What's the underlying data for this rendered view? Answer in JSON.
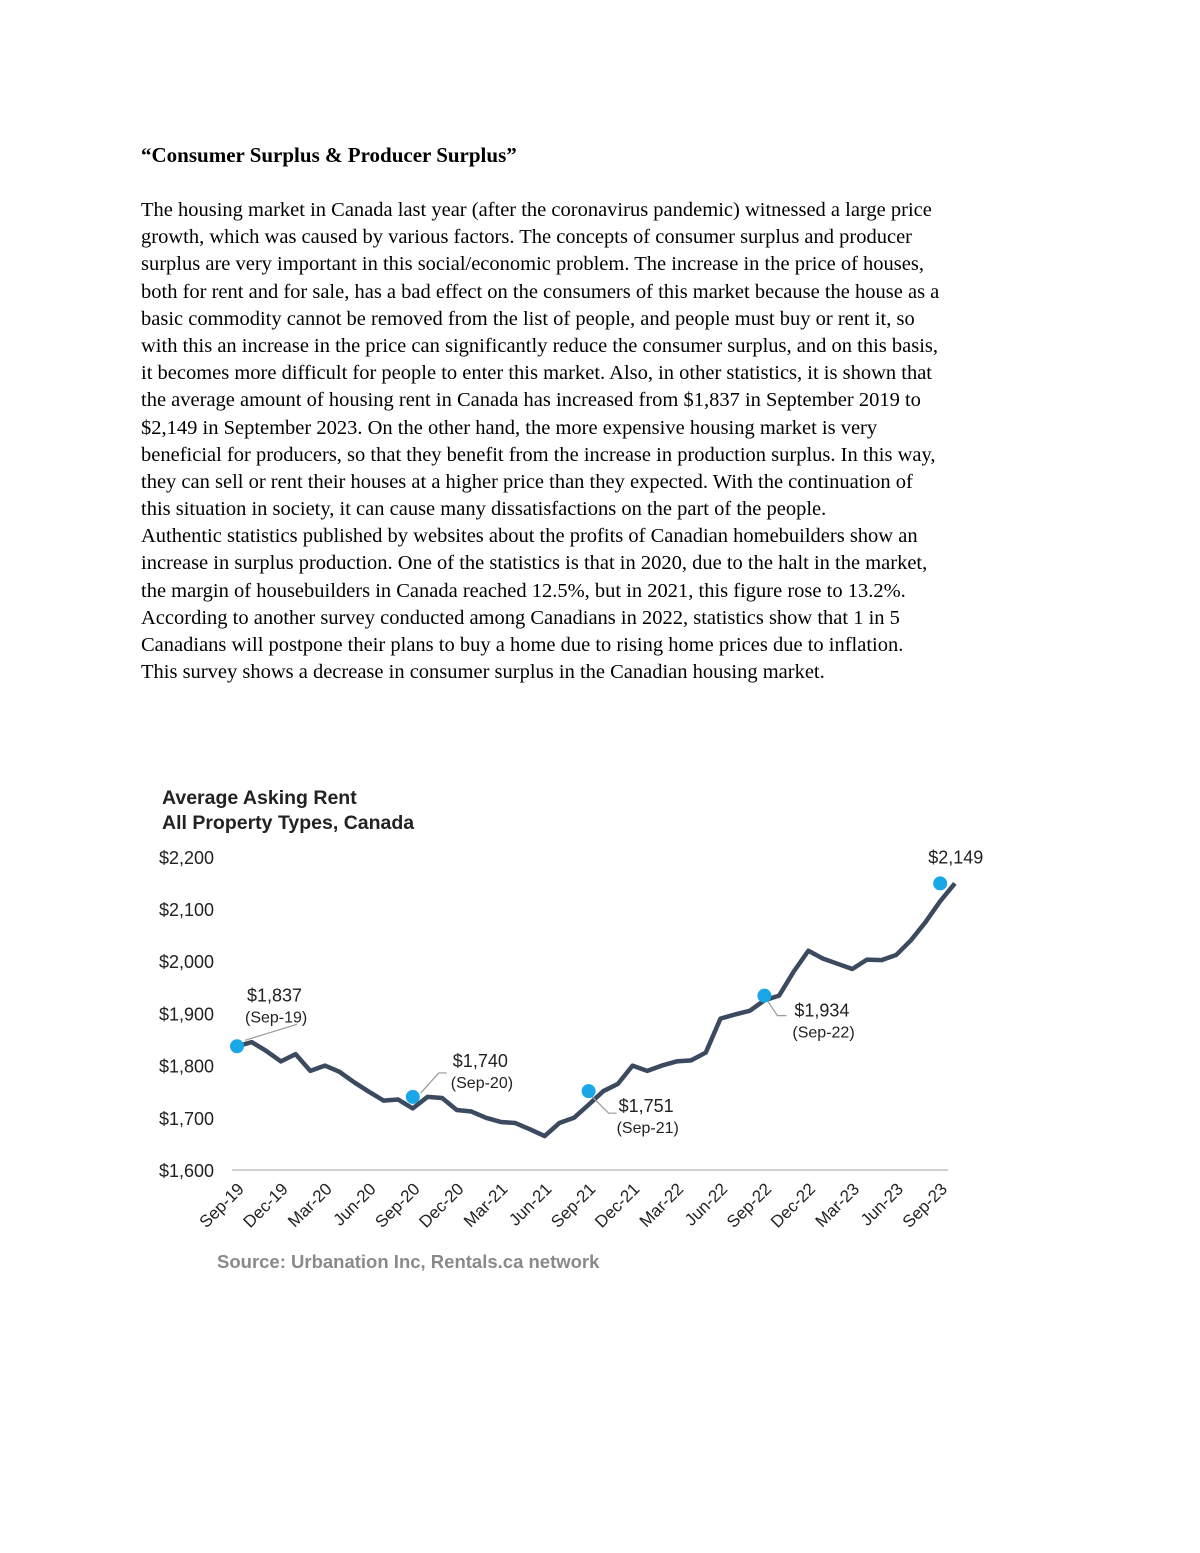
{
  "document": {
    "title": "“Consumer Surplus & Producer Surplus”",
    "lines": [
      "The housing market in Canada last year (after the coronavirus pandemic) witnessed a large price",
      "growth, which was caused by various factors. The concepts of consumer surplus and producer",
      "surplus are very important in this social/economic problem. The increase in the price of houses,",
      "both for rent and for sale, has a bad effect on the consumers of this market because the house as a",
      "basic commodity cannot be removed from the list of people, and people must buy or rent it, so",
      "with this an increase in the price can significantly reduce the consumer surplus, and on this basis,",
      "it becomes more difficult for people to enter this market. Also, in other statistics, it is shown that",
      "the average amount of housing rent in Canada has increased from $1,837 in September 2019 to",
      "$2,149 in September 2023. On the other hand, the more expensive housing market is very",
      "beneficial for producers, so that they benefit from the increase in production surplus. In this way,",
      "they can sell or rent their houses at a higher price than they expected. With the continuation of",
      "this situation in society, it can cause many dissatisfactions on the part of the people.",
      "Authentic statistics published by websites about the profits of Canadian homebuilders show an",
      "increase in surplus production. One of the statistics is that in 2020, due to the halt in the market,",
      "the margin of housebuilders in Canada reached 12.5%, but in 2021, this figure rose to 13.2%.",
      "According to another survey conducted among Canadians in 2022, statistics show that 1 in 5",
      "Canadians will postpone their plans to buy a home due to rising home prices due to inflation.",
      "This survey shows a decrease in consumer surplus in the Canadian housing market."
    ]
  },
  "chart_data": {
    "type": "line",
    "title": "Average Asking Rent",
    "subtitle": "All Property Types, Canada",
    "source": "Source: Urbanation Inc, Rentals.ca network",
    "ylim": [
      1600,
      2200
    ],
    "yticks": [
      "$1,600",
      "$1,700",
      "$1,800",
      "$1,900",
      "$2,000",
      "$2,100",
      "$2,200"
    ],
    "ytick_values": [
      1600,
      1700,
      1800,
      1900,
      2000,
      2100,
      2200
    ],
    "xticks": [
      "Sep-19",
      "Dec-19",
      "Mar-20",
      "Jun-20",
      "Sep-20",
      "Dec-20",
      "Mar-21",
      "Jun-21",
      "Sep-21",
      "Dec-21",
      "Mar-22",
      "Jun-22",
      "Sep-22",
      "Dec-22",
      "Mar-23",
      "Jun-23",
      "Sep-23"
    ],
    "grid": false,
    "line_color": "#3b4a5e",
    "marker_color": "#1aa7e8",
    "values": [
      1837,
      1845,
      1828,
      1808,
      1822,
      1790,
      1800,
      1788,
      1768,
      1750,
      1733,
      1735,
      1718,
      1740,
      1738,
      1715,
      1712,
      1700,
      1692,
      1690,
      1678,
      1665,
      1690,
      1700,
      1725,
      1751,
      1765,
      1800,
      1790,
      1800,
      1808,
      1810,
      1825,
      1890,
      1898,
      1905,
      1925,
      1934,
      1980,
      2020,
      2005,
      1995,
      1985,
      2003,
      2002,
      2012,
      2040,
      2075,
      2115,
      2149
    ],
    "annotations": [
      {
        "month": "Sep-19",
        "value": "$1,837",
        "label": "(Sep-19)"
      },
      {
        "month": "Sep-20",
        "value": "$1,740",
        "label": "(Sep-20)"
      },
      {
        "month": "Sep-21",
        "value": "$1,751",
        "label": "(Sep-21)"
      },
      {
        "month": "Sep-22",
        "value": "$1,934",
        "label": "(Sep-22)"
      },
      {
        "month": "Sep-23",
        "value": "$2,149",
        "label": ""
      }
    ]
  }
}
